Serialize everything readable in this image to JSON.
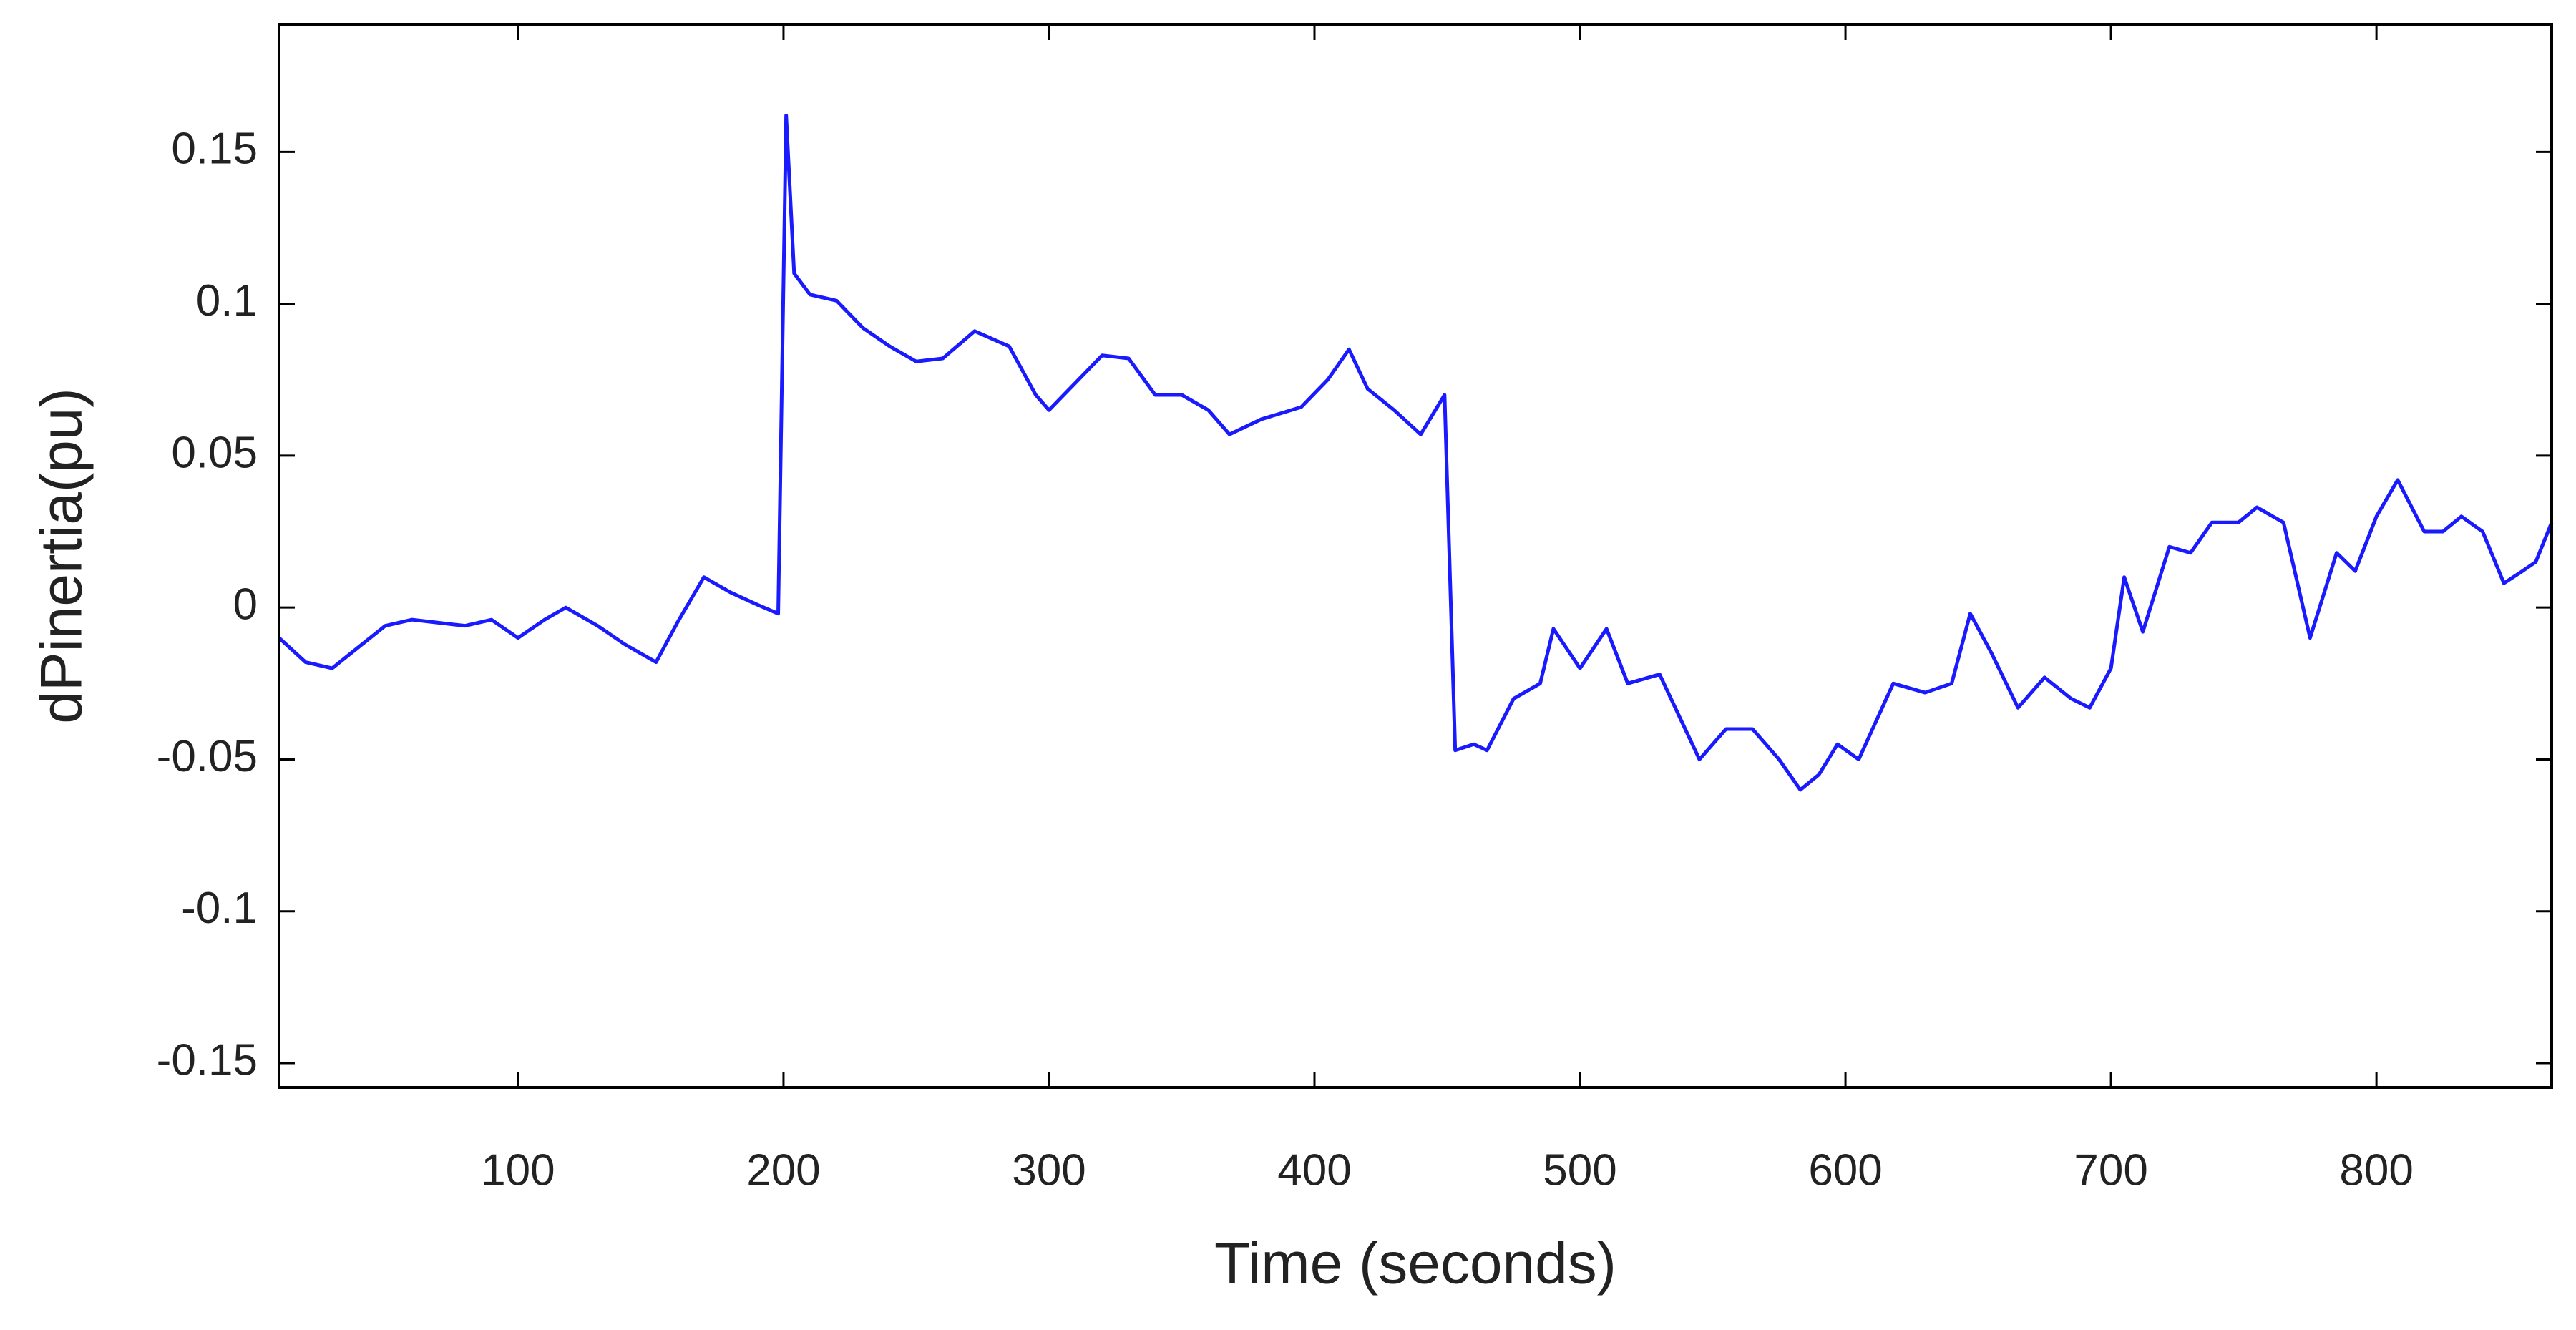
{
  "chart_data": {
    "type": "line",
    "xlabel": "Time (seconds)",
    "ylabel": "dPinertia(pu)",
    "x": [
      10,
      20,
      30,
      40,
      50,
      60,
      70,
      80,
      90,
      100,
      110,
      118,
      130,
      140,
      152,
      160,
      170,
      180,
      190,
      198,
      201,
      204,
      210,
      220,
      230,
      240,
      250,
      260,
      272,
      285,
      295,
      300,
      310,
      320,
      330,
      340,
      350,
      360,
      368,
      380,
      395,
      405,
      413,
      420,
      430,
      440,
      449,
      453,
      460,
      465,
      475,
      485,
      490,
      500,
      510,
      518,
      530,
      545,
      555,
      565,
      575,
      583,
      590,
      597,
      605,
      618,
      630,
      640,
      647,
      655,
      665,
      675,
      685,
      692,
      700,
      705,
      712,
      722,
      730,
      738,
      748,
      755,
      765,
      775,
      785,
      792,
      800,
      808,
      818,
      825,
      832,
      840,
      848,
      855,
      860,
      866
    ],
    "series": [
      {
        "name": "dPinertia",
        "color": "#1a1aff",
        "values": [
          -0.01,
          -0.018,
          -0.02,
          -0.013,
          -0.006,
          -0.004,
          -0.005,
          -0.006,
          -0.004,
          -0.01,
          -0.004,
          0.0,
          -0.006,
          -0.012,
          -0.018,
          -0.005,
          0.01,
          0.005,
          0.001,
          -0.002,
          0.162,
          0.11,
          0.103,
          0.101,
          0.092,
          0.086,
          0.081,
          0.082,
          0.091,
          0.086,
          0.07,
          0.065,
          0.074,
          0.083,
          0.082,
          0.07,
          0.07,
          0.065,
          0.057,
          0.062,
          0.066,
          0.075,
          0.085,
          0.072,
          0.065,
          0.057,
          0.07,
          -0.047,
          -0.045,
          -0.047,
          -0.03,
          -0.025,
          -0.007,
          -0.02,
          -0.007,
          -0.025,
          -0.022,
          -0.05,
          -0.04,
          -0.04,
          -0.05,
          -0.06,
          -0.055,
          -0.045,
          -0.05,
          -0.025,
          -0.028,
          -0.025,
          -0.002,
          -0.015,
          -0.033,
          -0.023,
          -0.03,
          -0.033,
          -0.02,
          0.01,
          -0.008,
          0.02,
          0.018,
          0.028,
          0.028,
          0.033,
          0.028,
          -0.01,
          0.018,
          0.012,
          0.03,
          0.042,
          0.025,
          0.025,
          0.03,
          0.025,
          0.008,
          0.012,
          0.015,
          0.028
        ]
      }
    ],
    "xlim": [
      10,
      866
    ],
    "ylim": [
      -0.158,
      0.192
    ],
    "xticks": [
      100,
      200,
      300,
      400,
      500,
      600,
      700,
      800
    ],
    "yticks": [
      0.15,
      0.1,
      0.05,
      0,
      -0.05,
      -0.1,
      -0.15
    ],
    "grid": false
  }
}
